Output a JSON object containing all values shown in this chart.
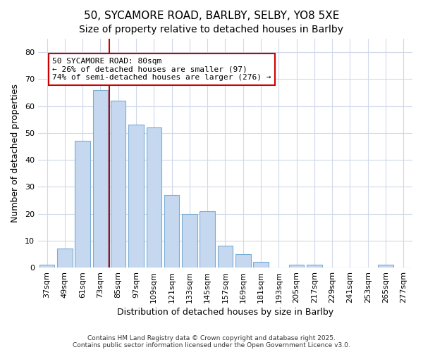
{
  "title1": "50, SYCAMORE ROAD, BARLBY, SELBY, YO8 5XE",
  "title2": "Size of property relative to detached houses in Barlby",
  "xlabel": "Distribution of detached houses by size in Barlby",
  "ylabel": "Number of detached properties",
  "bar_labels": [
    "37sqm",
    "49sqm",
    "61sqm",
    "73sqm",
    "85sqm",
    "97sqm",
    "109sqm",
    "121sqm",
    "133sqm",
    "145sqm",
    "157sqm",
    "169sqm",
    "181sqm",
    "193sqm",
    "205sqm",
    "217sqm",
    "229sqm",
    "241sqm",
    "253sqm",
    "265sqm",
    "277sqm"
  ],
  "bar_values": [
    1,
    7,
    47,
    66,
    62,
    53,
    52,
    27,
    20,
    21,
    8,
    5,
    2,
    0,
    1,
    1,
    0,
    0,
    0,
    1,
    0
  ],
  "bar_color": "#c5d8f0",
  "bar_edge_color": "#7aadd4",
  "red_line_x": 3.5,
  "annotation_text": "50 SYCAMORE ROAD: 80sqm\n← 26% of detached houses are smaller (97)\n74% of semi-detached houses are larger (276) →",
  "annotation_box_color": "white",
  "annotation_box_edge_color": "#cc0000",
  "ylim": [
    0,
    85
  ],
  "yticks": [
    0,
    10,
    20,
    30,
    40,
    50,
    60,
    70,
    80
  ],
  "background_color": "#ffffff",
  "plot_bg_color": "#ffffff",
  "grid_color": "#d0d8e8",
  "footer_text": "Contains HM Land Registry data © Crown copyright and database right 2025.\nContains public sector information licensed under the Open Government Licence v3.0.",
  "title1_fontsize": 11,
  "title2_fontsize": 10,
  "xlabel_fontsize": 9,
  "ylabel_fontsize": 9,
  "tick_fontsize": 8,
  "annot_fontsize": 8
}
